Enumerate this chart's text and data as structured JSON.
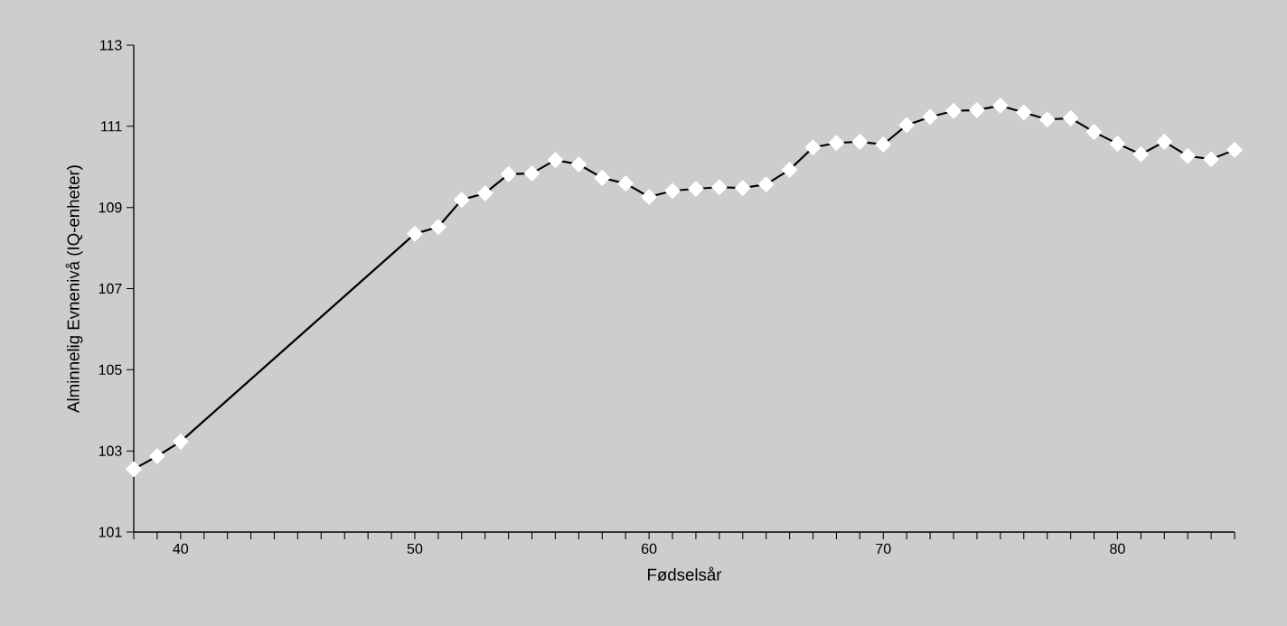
{
  "chart_data": {
    "type": "line",
    "xlabel": "Fødselsår",
    "ylabel": "Alminnelig Evnenivå (IQ-enheter)",
    "x": [
      38,
      39,
      40,
      50,
      51,
      52,
      53,
      54,
      55,
      56,
      57,
      58,
      59,
      60,
      61,
      62,
      63,
      64,
      65,
      66,
      67,
      68,
      69,
      70,
      71,
      72,
      73,
      74,
      75,
      76,
      77,
      78,
      79,
      80,
      81,
      82,
      83,
      84,
      85
    ],
    "series": [
      {
        "color": "#000000",
        "values": [
          102.55,
          102.87,
          103.23,
          108.35,
          108.52,
          109.19,
          109.35,
          109.82,
          109.84,
          110.17,
          110.06,
          109.73,
          109.59,
          109.26,
          109.41,
          109.46,
          109.5,
          109.48,
          109.57,
          109.93,
          110.48,
          110.59,
          110.62,
          110.55,
          111.03,
          111.23,
          111.38,
          111.4,
          111.51,
          111.34,
          111.17,
          111.2,
          110.86,
          110.57,
          110.31,
          110.62,
          110.27,
          110.19,
          110.42
        ]
      }
    ],
    "xlim": [
      38,
      85
    ],
    "ylim": [
      101,
      113
    ],
    "xticks": [
      {
        "value": 38,
        "label": null
      },
      {
        "value": 39,
        "label": null
      },
      40,
      {
        "value": 41,
        "label": null
      },
      {
        "value": 42,
        "label": null
      },
      {
        "value": 43,
        "label": null
      },
      {
        "value": 44,
        "label": null
      },
      {
        "value": 45,
        "label": null
      },
      {
        "value": 46,
        "label": null
      },
      {
        "value": 47,
        "label": null
      },
      {
        "value": 48,
        "label": null
      },
      {
        "value": 49,
        "label": null
      },
      50,
      {
        "value": 51,
        "label": null
      },
      {
        "value": 52,
        "label": null
      },
      {
        "value": 53,
        "label": null
      },
      {
        "value": 54,
        "label": null
      },
      {
        "value": 55,
        "label": null
      },
      {
        "value": 56,
        "label": null
      },
      {
        "value": 57,
        "label": null
      },
      {
        "value": 58,
        "label": null
      },
      {
        "value": 59,
        "label": null
      },
      60,
      {
        "value": 61,
        "label": null
      },
      {
        "value": 62,
        "label": null
      },
      {
        "value": 63,
        "label": null
      },
      {
        "value": 64,
        "label": null
      },
      {
        "value": 65,
        "label": null
      },
      {
        "value": 66,
        "label": null
      },
      {
        "value": 67,
        "label": null
      },
      {
        "value": 68,
        "label": null
      },
      {
        "value": 69,
        "label": null
      },
      70,
      {
        "value": 71,
        "label": null
      },
      {
        "value": 72,
        "label": null
      },
      {
        "value": 73,
        "label": null
      },
      {
        "value": 74,
        "label": null
      },
      {
        "value": 75,
        "label": null
      },
      {
        "value": 76,
        "label": null
      },
      {
        "value": 77,
        "label": null
      },
      {
        "value": 78,
        "label": null
      },
      {
        "value": 79,
        "label": null
      },
      80,
      {
        "value": 81,
        "label": null
      },
      {
        "value": 82,
        "label": null
      },
      {
        "value": 83,
        "label": null
      },
      {
        "value": 84,
        "label": null
      },
      {
        "value": 85,
        "label": null
      }
    ],
    "yticks": [
      101,
      103,
      105,
      107,
      109,
      111,
      113
    ],
    "marker": "diamond",
    "line_style": "solid",
    "grid": false
  }
}
